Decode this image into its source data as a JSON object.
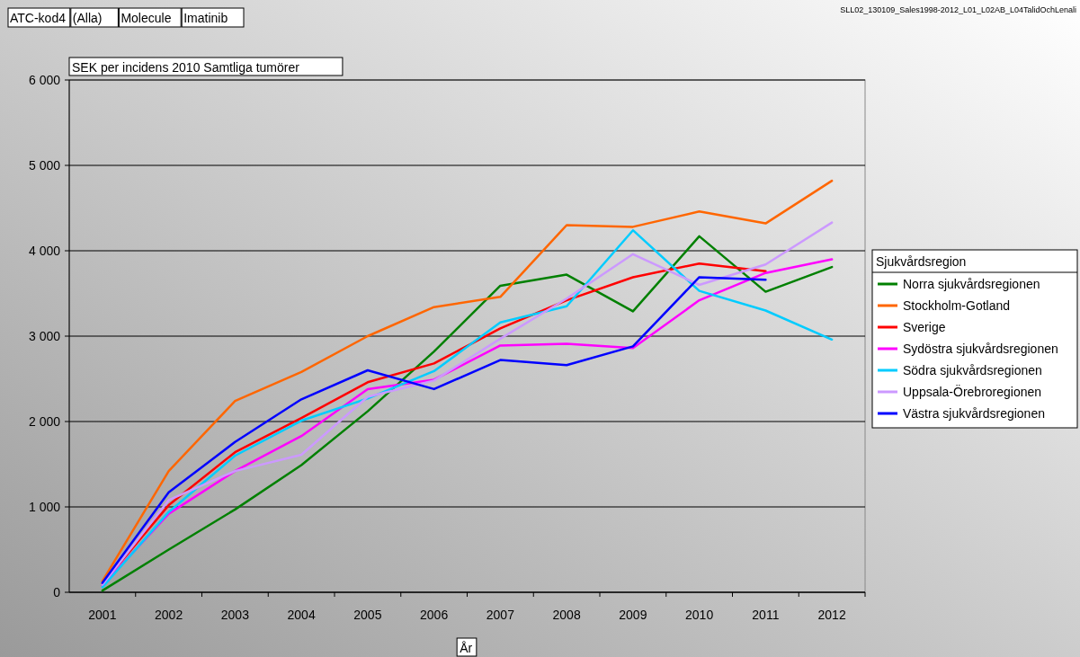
{
  "chart_data": {
    "type": "line",
    "title": "SEK per incidens 2010 Samtliga tumörer",
    "xlabel": "År",
    "legend_title": "Sjukvårdsregion",
    "legend": "right",
    "grid": "y",
    "marker": "none",
    "line_style": "solid",
    "annotations": [
      "ATC-kod4",
      "(Alla)",
      "Molecule",
      "Imatinib",
      "SLL02_130109_Sales1998-2012_L01_L02AB_L04TalidOchLenali"
    ],
    "categories": [
      "2001",
      "2002",
      "2003",
      "2004",
      "2005",
      "2006",
      "2007",
      "2008",
      "2009",
      "2010",
      "2011",
      "2012"
    ],
    "ylim": [
      0,
      6000
    ],
    "yticks": [
      0,
      {
        "value": 1000,
        "label": "1 000"
      },
      {
        "value": 2000,
        "label": "2 000"
      },
      {
        "value": 3000,
        "label": "3 000"
      },
      {
        "value": 4000,
        "label": "4 000"
      },
      {
        "value": 5000,
        "label": "5 000"
      },
      {
        "value": 6000,
        "label": "6 000"
      }
    ],
    "series": [
      {
        "name": "Norra sjukvårdsregionen",
        "color": "#008000",
        "values": [
          20,
          500,
          970,
          1490,
          2120,
          2820,
          3590,
          3720,
          3290,
          4170,
          3520,
          3810
        ]
      },
      {
        "name": "Stockholm-Gotland",
        "color": "#ff6600",
        "values": [
          130,
          1420,
          2240,
          2580,
          3000,
          3340,
          3460,
          4300,
          4280,
          4460,
          4320,
          4820
        ]
      },
      {
        "name": "Sverige",
        "color": "#ff0000",
        "values": [
          100,
          1020,
          1640,
          2040,
          2460,
          2680,
          3090,
          3420,
          3690,
          3850,
          3760,
          null
        ]
      },
      {
        "name": "Sydöstra sjukvårdsregionen",
        "color": "#ff00ff",
        "values": [
          80,
          920,
          1420,
          1830,
          2380,
          2490,
          2890,
          2910,
          2860,
          3420,
          3740,
          3900
        ]
      },
      {
        "name": "Södra sjukvårdsregionen",
        "color": "#00ccff",
        "values": [
          60,
          940,
          1600,
          2010,
          2270,
          2590,
          3160,
          3350,
          4240,
          3530,
          3300,
          2960
        ]
      },
      {
        "name": "Uppsala-Örebroregionen",
        "color": "#cc99ff",
        "values": [
          90,
          1080,
          1420,
          1610,
          2290,
          2480,
          2970,
          3440,
          3960,
          3600,
          3840,
          4330
        ]
      },
      {
        "name": "Västra sjukvårdsregionen",
        "color": "#0000ff",
        "values": [
          110,
          1170,
          1760,
          2260,
          2600,
          2380,
          2720,
          2660,
          2880,
          3690,
          3660,
          null
        ]
      }
    ]
  }
}
